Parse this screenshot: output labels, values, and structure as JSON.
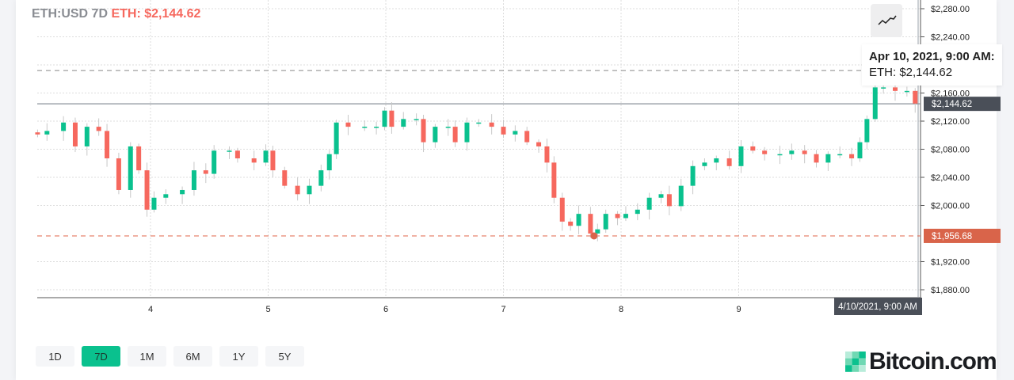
{
  "header": {
    "pair": "ETH:USD 7D",
    "price_label": "ETH: $2,144.62"
  },
  "tooltip": {
    "date": "Apr 10, 2021, 9:00 AM:",
    "value": "ETH: $2,144.62"
  },
  "crosshair_time_label": "4/10/2021, 9:00 AM",
  "current_price_label": "$2,144.62",
  "low_price_label": "$1,956.68",
  "chart_type_icon": "line-chart-icon",
  "ranges": [
    {
      "label": "1D"
    },
    {
      "label": "7D",
      "active": true
    },
    {
      "label": "1M"
    },
    {
      "label": "6M"
    },
    {
      "label": "1Y"
    },
    {
      "label": "5Y"
    }
  ],
  "brand": "Bitcoin.com",
  "colors": {
    "up": "#0ac18e",
    "down": "#f6685e",
    "low_line": "#e0654a",
    "high_line": "#4caf50",
    "crosshair": "#4a4f58"
  },
  "chart_data": {
    "type": "candlestick",
    "title": "ETH:USD 7D",
    "x_ticks": [
      4,
      5,
      6,
      7,
      8,
      9
    ],
    "y_ticks": [
      "$1,880.00",
      "$1,920.00",
      "$2,000.00",
      "$2,040.00",
      "$2,080.00",
      "$2,120.00",
      "$2,160.00",
      "$2,240.00",
      "$2,280.00"
    ],
    "y_tick_values": [
      1880,
      1920,
      2000,
      2040,
      2080,
      2120,
      2160,
      2240,
      2280
    ],
    "ylim": [
      1840,
      2290
    ],
    "xlim": [
      3.0,
      10.55
    ],
    "current_price": 2144.62,
    "low_price": 1956.68,
    "high_price": 2192,
    "grid": true,
    "candles": [
      [
        3.04,
        2101
      ],
      [
        3.12,
        2106
      ],
      [
        3.26,
        2118
      ],
      [
        3.36,
        2084
      ],
      [
        3.46,
        2112
      ],
      [
        3.56,
        2106
      ],
      [
        3.63,
        2067
      ],
      [
        3.73,
        2022
      ],
      [
        3.83,
        2084
      ],
      [
        3.9,
        2050
      ],
      [
        3.97,
        1994
      ],
      [
        4.03,
        2011
      ],
      [
        4.13,
        2016
      ],
      [
        4.27,
        2022
      ],
      [
        4.37,
        2050
      ],
      [
        4.47,
        2045
      ],
      [
        4.54,
        2078
      ],
      [
        4.67,
        2078
      ],
      [
        4.74,
        2067
      ],
      [
        4.88,
        2061
      ],
      [
        4.98,
        2078
      ],
      [
        5.04,
        2050
      ],
      [
        5.14,
        2028
      ],
      [
        5.25,
        2016
      ],
      [
        5.35,
        2028
      ],
      [
        5.45,
        2050
      ],
      [
        5.52,
        2073
      ],
      [
        5.58,
        2118
      ],
      [
        5.68,
        2112
      ],
      [
        5.82,
        2112
      ],
      [
        5.92,
        2112
      ],
      [
        5.99,
        2135
      ],
      [
        6.05,
        2112
      ],
      [
        6.15,
        2123
      ],
      [
        6.26,
        2123
      ],
      [
        6.32,
        2090
      ],
      [
        6.42,
        2112
      ],
      [
        6.53,
        2112
      ],
      [
        6.59,
        2090
      ],
      [
        6.69,
        2118
      ],
      [
        6.79,
        2118
      ],
      [
        6.9,
        2112
      ],
      [
        7.0,
        2101
      ],
      [
        7.1,
        2106
      ],
      [
        7.2,
        2090
      ],
      [
        7.3,
        2084
      ],
      [
        7.37,
        2061
      ],
      [
        7.43,
        2011
      ],
      [
        7.5,
        1977
      ],
      [
        7.57,
        1971
      ],
      [
        7.64,
        1988
      ],
      [
        7.74,
        1960
      ],
      [
        7.8,
        1966
      ],
      [
        7.87,
        1988
      ],
      [
        7.97,
        1982
      ],
      [
        8.04,
        1988
      ],
      [
        8.14,
        1994
      ],
      [
        8.24,
        2011
      ],
      [
        8.34,
        2016
      ],
      [
        8.41,
        1999
      ],
      [
        8.51,
        2028
      ],
      [
        8.61,
        2056
      ],
      [
        8.71,
        2061
      ],
      [
        8.81,
        2067
      ],
      [
        8.92,
        2056
      ],
      [
        9.02,
        2084
      ],
      [
        9.12,
        2078
      ],
      [
        9.22,
        2073
      ],
      [
        9.35,
        2073
      ],
      [
        9.45,
        2078
      ],
      [
        9.56,
        2073
      ],
      [
        9.66,
        2061
      ],
      [
        9.76,
        2073
      ],
      [
        9.86,
        2073
      ],
      [
        9.96,
        2067
      ],
      [
        10.03,
        2090
      ],
      [
        10.09,
        2123
      ],
      [
        10.16,
        2168
      ],
      [
        10.23,
        2168
      ],
      [
        10.33,
        2163
      ],
      [
        10.43,
        2163
      ],
      [
        10.5,
        2145
      ]
    ]
  }
}
